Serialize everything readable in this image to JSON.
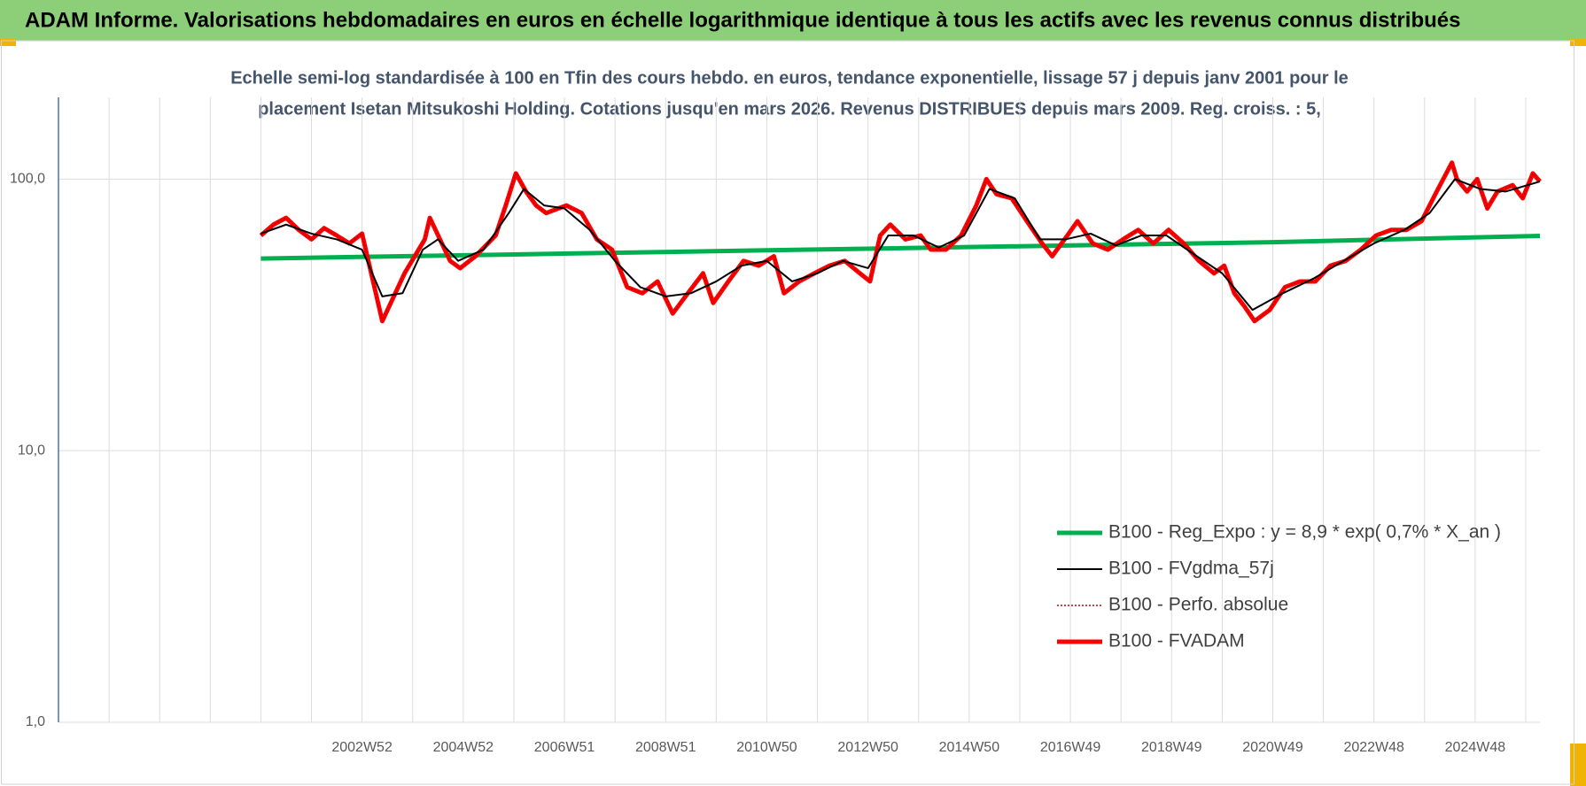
{
  "header": {
    "title": "ADAM Informe. Valorisations hebdomadaires en euros en échelle logarithmique identique à tous les actifs avec les revenus connus distribués"
  },
  "chart_data": {
    "type": "line",
    "title": [
      "Echelle semi-log standardisée à 100 en Tfin des cours hebdo. en euros, tendance exponentielle, lissage 57 j depuis janv 2001 pour le",
      "placement Isetan Mitsukoshi Holding. Cotations jusqu'en mars 2026. Revenus DISTRIBUES depuis mars 2009. Reg. croiss. : 5,"
    ],
    "log_scale": true,
    "grid": true,
    "legend": "lower-right",
    "ylim": [
      1,
      200
    ],
    "yticks": [
      {
        "value": 1,
        "label": "1,0"
      },
      {
        "value": 10,
        "label": "10,0"
      },
      {
        "value": 100,
        "label": "100,0"
      }
    ],
    "xlim": [
      1997,
      2026.28
    ],
    "xticks": [
      {
        "value": 2003,
        "label": "2002W52"
      },
      {
        "value": 2005,
        "label": "2004W52"
      },
      {
        "value": 2007,
        "label": "2006W51"
      },
      {
        "value": 2009,
        "label": "2008W51"
      },
      {
        "value": 2011,
        "label": "2010W50"
      },
      {
        "value": 2013,
        "label": "2012W50"
      },
      {
        "value": 2015,
        "label": "2014W50"
      },
      {
        "value": 2017,
        "label": "2016W49"
      },
      {
        "value": 2019,
        "label": "2018W49"
      },
      {
        "value": 2021,
        "label": "2020W49"
      },
      {
        "value": 2023,
        "label": "2022W48"
      },
      {
        "value": 2025,
        "label": "2024W48"
      }
    ],
    "xgrid": [
      1998,
      1999,
      2000,
      2001,
      2002,
      2004,
      2006,
      2008,
      2010,
      2012,
      2014,
      2016,
      2018,
      2020,
      2022,
      2024,
      2026
    ],
    "series": [
      {
        "name": "B100 - Reg_Expo : y = 8,9 * exp( 0,7% *  X_an )",
        "color": "#00b050",
        "line_style": "thick",
        "x": [
          2001,
          2006,
          2011,
          2016,
          2021,
          2026.28
        ],
        "values": [
          51,
          52.8,
          54.7,
          56.6,
          58.6,
          61.8
        ]
      },
      {
        "name": "B100 - FVgdma_57j",
        "color": "#000000",
        "line_style": "thin",
        "x": [
          2001.0,
          2001.5,
          2002.0,
          2002.5,
          2003.0,
          2003.4,
          2003.8,
          2004.2,
          2004.5,
          2004.9,
          2005.4,
          2005.9,
          2006.2,
          2006.6,
          2007.0,
          2007.5,
          2008.0,
          2008.5,
          2009.0,
          2009.5,
          2010.0,
          2010.5,
          2011.0,
          2011.5,
          2012.0,
          2012.5,
          2013.0,
          2013.4,
          2013.9,
          2014.4,
          2014.9,
          2015.4,
          2015.9,
          2016.4,
          2016.9,
          2017.4,
          2017.9,
          2018.4,
          2018.9,
          2019.5,
          2020.0,
          2020.6,
          2021.2,
          2021.8,
          2022.4,
          2023.0,
          2023.6,
          2024.1,
          2024.6,
          2025.1,
          2025.6,
          2026.28
        ],
        "values": [
          63,
          68,
          63,
          60,
          55,
          37,
          38,
          55,
          60,
          50,
          55,
          75,
          92,
          80,
          78,
          65,
          50,
          40,
          37,
          38,
          42,
          48,
          50,
          42,
          45,
          50,
          47,
          62,
          62,
          56,
          62,
          92,
          85,
          60,
          60,
          63,
          57,
          62,
          62,
          52,
          45,
          33,
          38,
          43,
          50,
          58,
          65,
          75,
          100,
          92,
          90,
          98
        ]
      },
      {
        "name": "B100 - Perfo. absolue",
        "color": "#c00000",
        "line_style": "dotted",
        "x": [
          2001.0,
          2001.25,
          2001.5,
          2001.75,
          2002.0,
          2002.25,
          2002.5,
          2002.75,
          2003.0,
          2003.4,
          2003.84,
          2004.24,
          2004.34,
          2004.74,
          2004.94,
          2005.24,
          2005.64,
          2005.84,
          2006.04,
          2006.24,
          2006.44,
          2006.64,
          2007.04,
          2007.34,
          2007.64,
          2007.94,
          2008.24,
          2008.54,
          2008.84,
          2009.14,
          2009.44,
          2009.74,
          2009.94,
          2010.24,
          2010.54,
          2010.84,
          2011.14,
          2011.34,
          2011.64,
          2011.94,
          2012.24,
          2012.54,
          2012.84,
          2013.04,
          2013.24,
          2013.44,
          2013.74,
          2014.04,
          2014.24,
          2014.54,
          2014.84,
          2015.14,
          2015.34,
          2015.54,
          2015.84,
          2016.14,
          2016.44,
          2016.64,
          2016.94,
          2017.14,
          2017.44,
          2017.74,
          2018.04,
          2018.34,
          2018.64,
          2018.94,
          2019.24,
          2019.54,
          2019.84,
          2020.04,
          2020.24,
          2020.44,
          2020.64,
          2020.94,
          2021.24,
          2021.54,
          2021.84,
          2022.14,
          2022.44,
          2022.74,
          2023.04,
          2023.34,
          2023.64,
          2023.94,
          2024.24,
          2024.54,
          2024.64,
          2024.84,
          2025.04,
          2025.24,
          2025.44,
          2025.74,
          2025.94,
          2026.14,
          2026.28
        ],
        "values": [
          62,
          68,
          72,
          65,
          60,
          66,
          62,
          58,
          63,
          30,
          45,
          60,
          72,
          50,
          47,
          52,
          62,
          80,
          105,
          90,
          80,
          75,
          80,
          75,
          60,
          55,
          40,
          38,
          42,
          32,
          38,
          45,
          35,
          42,
          50,
          48,
          52,
          38,
          42,
          45,
          48,
          50,
          45,
          42,
          62,
          68,
          60,
          62,
          55,
          55,
          62,
          80,
          100,
          88,
          85,
          70,
          58,
          52,
          62,
          70,
          58,
          55,
          60,
          65,
          58,
          65,
          58,
          50,
          45,
          48,
          38,
          34,
          30,
          33,
          40,
          42,
          42,
          48,
          50,
          55,
          62,
          65,
          65,
          70,
          90,
          115,
          100,
          90,
          100,
          78,
          90,
          95,
          85,
          105,
          98
        ]
      },
      {
        "name": "B100 - FVADAM",
        "color": "#ff0000",
        "line_style": "thick",
        "x": [
          2001.0,
          2001.25,
          2001.5,
          2001.75,
          2002.0,
          2002.25,
          2002.5,
          2002.75,
          2003.0,
          2003.4,
          2003.84,
          2004.24,
          2004.34,
          2004.74,
          2004.94,
          2005.24,
          2005.64,
          2005.84,
          2006.04,
          2006.24,
          2006.44,
          2006.64,
          2007.04,
          2007.34,
          2007.64,
          2007.94,
          2008.24,
          2008.54,
          2008.84,
          2009.14,
          2009.44,
          2009.74,
          2009.94,
          2010.24,
          2010.54,
          2010.84,
          2011.14,
          2011.34,
          2011.64,
          2011.94,
          2012.24,
          2012.54,
          2012.84,
          2013.04,
          2013.24,
          2013.44,
          2013.74,
          2014.04,
          2014.24,
          2014.54,
          2014.84,
          2015.14,
          2015.34,
          2015.54,
          2015.84,
          2016.14,
          2016.44,
          2016.64,
          2016.94,
          2017.14,
          2017.44,
          2017.74,
          2018.04,
          2018.34,
          2018.64,
          2018.94,
          2019.24,
          2019.54,
          2019.84,
          2020.04,
          2020.24,
          2020.44,
          2020.64,
          2020.94,
          2021.24,
          2021.54,
          2021.84,
          2022.14,
          2022.44,
          2022.74,
          2023.04,
          2023.34,
          2023.64,
          2023.94,
          2024.24,
          2024.54,
          2024.64,
          2024.84,
          2025.04,
          2025.24,
          2025.44,
          2025.74,
          2025.94,
          2026.14,
          2026.28
        ],
        "values": [
          62,
          68,
          72,
          65,
          60,
          66,
          62,
          58,
          63,
          30,
          45,
          60,
          72,
          50,
          47,
          52,
          62,
          80,
          105,
          90,
          80,
          75,
          80,
          75,
          60,
          55,
          40,
          38,
          42,
          32,
          38,
          45,
          35,
          42,
          50,
          48,
          52,
          38,
          42,
          45,
          48,
          50,
          45,
          42,
          62,
          68,
          60,
          62,
          55,
          55,
          62,
          80,
          100,
          88,
          85,
          70,
          58,
          52,
          62,
          70,
          58,
          55,
          60,
          65,
          58,
          65,
          58,
          50,
          45,
          48,
          38,
          34,
          30,
          33,
          40,
          42,
          42,
          48,
          50,
          55,
          62,
          65,
          65,
          70,
          90,
          115,
          100,
          90,
          100,
          78,
          90,
          95,
          85,
          105,
          98
        ]
      }
    ]
  }
}
